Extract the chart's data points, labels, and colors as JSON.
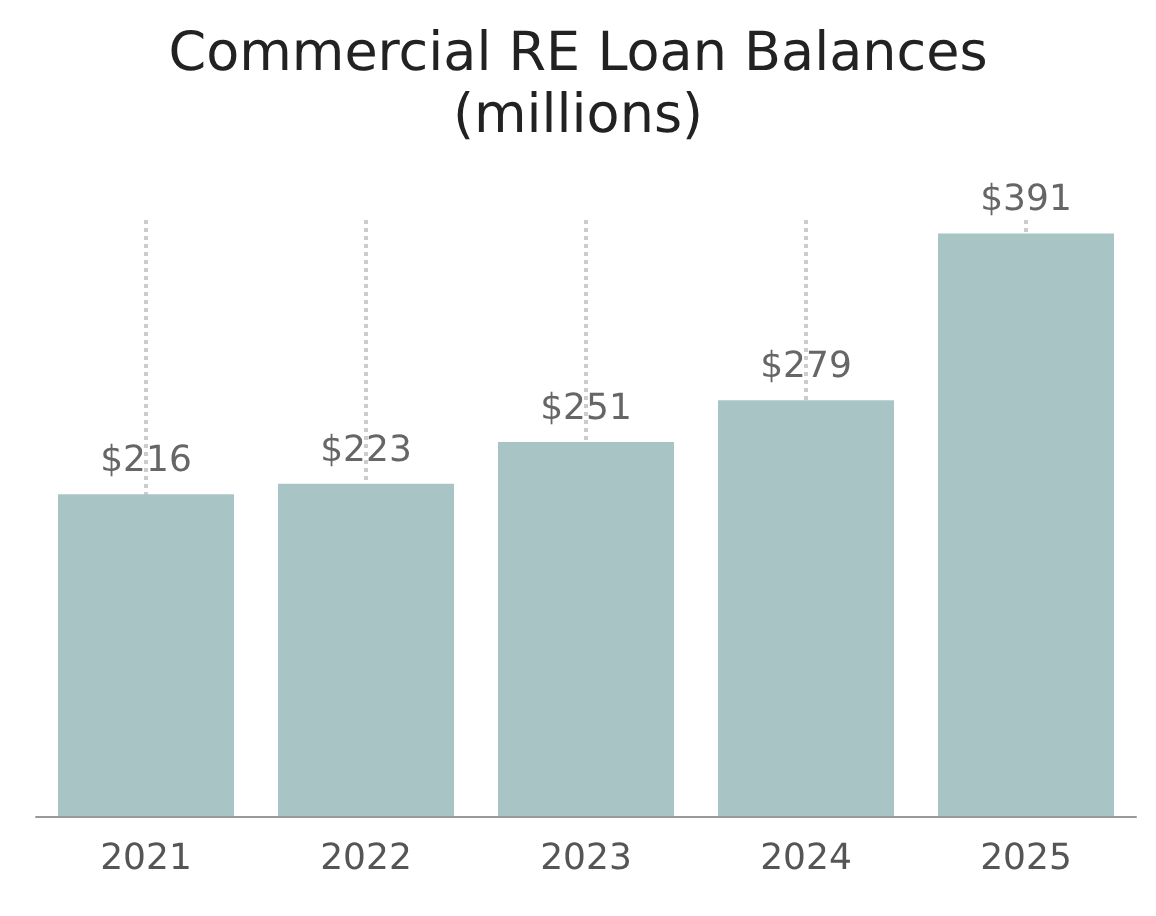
{
  "chart_data": {
    "type": "bar",
    "title": "Commercial RE Loan Balances",
    "subtitle": "(millions)",
    "categories": [
      "2021",
      "2022",
      "2023",
      "2024",
      "2025"
    ],
    "values": [
      216,
      223,
      251,
      279,
      391
    ],
    "value_labels": [
      "$216",
      "$223",
      "$251",
      "$279",
      "$391"
    ],
    "color": "#a9c4c5",
    "grid": "x"
  }
}
